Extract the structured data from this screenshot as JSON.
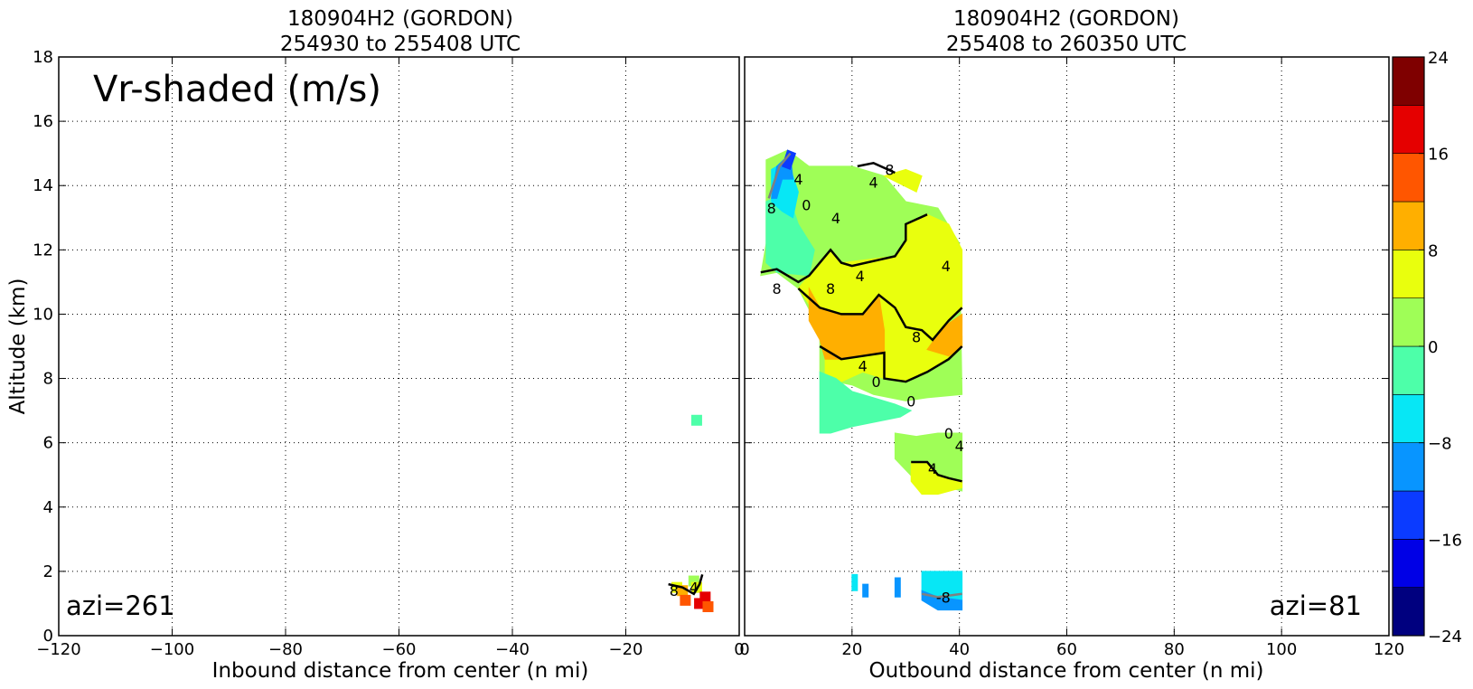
{
  "chart_data": [
    {
      "type": "heatmap",
      "title": [
        "180904H2 (GORDON)",
        "254930 to 255408 UTC"
      ],
      "xlabel": "Inbound distance from center (n mi)",
      "ylabel": "Altitude (km)",
      "annotation": "Vr-shaded (m/s)",
      "azi_label": "azi=261",
      "xlim": [
        -120,
        0
      ],
      "ylim": [
        0,
        18
      ],
      "x_ticks": [
        "−120",
        "−100",
        "−80",
        "−60",
        "−40",
        "−20",
        "0"
      ],
      "y_ticks": [
        "0",
        "2",
        "4",
        "6",
        "8",
        "10",
        "12",
        "14",
        "16",
        "18"
      ],
      "grid": true,
      "cells": [
        {
          "x": -7.5,
          "y": 6.7,
          "value": -2
        },
        {
          "x": -11,
          "y": 1.5,
          "value": 6
        },
        {
          "x": -10,
          "y": 1.4,
          "value": 10
        },
        {
          "x": -9.5,
          "y": 1.1,
          "value": 14
        },
        {
          "x": -8,
          "y": 1.7,
          "value": 2
        },
        {
          "x": -7.5,
          "y": 1.5,
          "value": 6
        },
        {
          "x": -7,
          "y": 1.0,
          "value": 18
        },
        {
          "x": -6,
          "y": 1.2,
          "value": 18
        },
        {
          "x": -5.5,
          "y": 0.9,
          "value": 14
        }
      ],
      "contour_labels": [
        {
          "text": "8",
          "x": -11.5,
          "y": 1.4
        },
        {
          "text": "4",
          "x": -8,
          "y": 1.5
        }
      ]
    },
    {
      "type": "heatmap",
      "title": [
        "180904H2 (GORDON)",
        "255408 to 260350 UTC"
      ],
      "xlabel": "Outbound distance from center (n mi)",
      "xlim": [
        0,
        120
      ],
      "ylim": [
        0,
        18
      ],
      "azi_label": "azi=81",
      "x_ticks": [
        "0",
        "20",
        "40",
        "60",
        "80",
        "100",
        "120"
      ],
      "grid": true,
      "regions": [
        {
          "value": 2,
          "points": [
            [
              4,
              13.8
            ],
            [
              4,
              14.8
            ],
            [
              8,
              15.1
            ],
            [
              12,
              14.6
            ],
            [
              20,
              14.6
            ],
            [
              26,
              14.3
            ],
            [
              30,
              13.5
            ],
            [
              36,
              13.3
            ],
            [
              40,
              12.2
            ],
            [
              40.5,
              7.5
            ],
            [
              34,
              7.4
            ],
            [
              30,
              7.3
            ],
            [
              24,
              7.5
            ],
            [
              20,
              7.8
            ],
            [
              14,
              8.0
            ],
            [
              14,
              9.5
            ],
            [
              10,
              10.8
            ],
            [
              6,
              11.3
            ],
            [
              3,
              11.2
            ],
            [
              4,
              12.2
            ]
          ]
        },
        {
          "value": -2,
          "points": [
            [
              4,
              12.0
            ],
            [
              4,
              13.5
            ],
            [
              8,
              13.8
            ],
            [
              10,
              12.8
            ],
            [
              13,
              12.0
            ],
            [
              12,
              11.2
            ],
            [
              6,
              11.3
            ],
            [
              4,
              11.6
            ]
          ]
        },
        {
          "value": -6,
          "points": [
            [
              5,
              13.5
            ],
            [
              5,
              14.5
            ],
            [
              8,
              14.8
            ],
            [
              10,
              13.8
            ],
            [
              9,
              13.0
            ],
            [
              7,
              13.2
            ]
          ]
        },
        {
          "value": -10,
          "points": [
            [
              5,
              13.6
            ],
            [
              6,
              14.6
            ],
            [
              8.5,
              15.0
            ],
            [
              9,
              14.2
            ],
            [
              7,
              14.2
            ],
            [
              6,
              13.6
            ]
          ]
        },
        {
          "value": -14,
          "points": [
            [
              7,
              14.6
            ],
            [
              8,
              15.1
            ],
            [
              9.5,
              15.0
            ],
            [
              8.5,
              14.5
            ]
          ]
        },
        {
          "value": 6,
          "points": [
            [
              14,
              9.8
            ],
            [
              22,
              10.0
            ],
            [
              25,
              10.6
            ],
            [
              28,
              10.2
            ],
            [
              30,
              9.6
            ],
            [
              33,
              9.5
            ],
            [
              35,
              9.2
            ],
            [
              38,
              9.8
            ],
            [
              40.5,
              10.2
            ],
            [
              40.5,
              12.0
            ],
            [
              38,
              12.8
            ],
            [
              34,
              13.1
            ],
            [
              30,
              12.8
            ],
            [
              30,
              12.3
            ],
            [
              28,
              11.8
            ],
            [
              18,
              11.6
            ],
            [
              16,
              12.0
            ],
            [
              14,
              11.6
            ],
            [
              12,
              11.2
            ],
            [
              10,
              10.8
            ]
          ]
        },
        {
          "value": 6,
          "points": [
            [
              26,
              14.3
            ],
            [
              30,
              14.5
            ],
            [
              33,
              14.3
            ],
            [
              32,
              13.8
            ]
          ]
        },
        {
          "value": 6,
          "points": [
            [
              15,
              9.0
            ],
            [
              15,
              8.0
            ],
            [
              18,
              7.9
            ],
            [
              22,
              8.2
            ],
            [
              26,
              8.0
            ],
            [
              30,
              7.9
            ],
            [
              34,
              8.2
            ],
            [
              38,
              8.6
            ],
            [
              40.5,
              9.0
            ],
            [
              40.5,
              9.3
            ],
            [
              38,
              9.0
            ],
            [
              35,
              9.2
            ],
            [
              33,
              9.5
            ],
            [
              30,
              9.6
            ],
            [
              28,
              10.2
            ],
            [
              25,
              10.6
            ],
            [
              22,
              10.0
            ],
            [
              18,
              9.8
            ]
          ]
        },
        {
          "value": 10,
          "points": [
            [
              12,
              10.8
            ],
            [
              14,
              10.2
            ],
            [
              18,
              10.0
            ],
            [
              22,
              10.0
            ],
            [
              25,
              10.6
            ],
            [
              26,
              9.5
            ],
            [
              26,
              8.8
            ],
            [
              22,
              8.7
            ],
            [
              18,
              8.6
            ],
            [
              15,
              8.6
            ],
            [
              14,
              9.2
            ],
            [
              12,
              9.8
            ]
          ]
        },
        {
          "value": 10,
          "points": [
            [
              34,
              8.9
            ],
            [
              37,
              9.6
            ],
            [
              40.5,
              10.0
            ],
            [
              40.5,
              9.0
            ],
            [
              38,
              8.7
            ]
          ]
        },
        {
          "value": -2,
          "points": [
            [
              14,
              6.3
            ],
            [
              14,
              8.2
            ],
            [
              17,
              8.0
            ],
            [
              20,
              7.6
            ],
            [
              24,
              7.4
            ],
            [
              28,
              7.2
            ],
            [
              31,
              7.0
            ],
            [
              29,
              6.8
            ],
            [
              20,
              6.5
            ],
            [
              16,
              6.3
            ]
          ]
        },
        {
          "value": 2,
          "points": [
            [
              28,
              6.3
            ],
            [
              28,
              5.5
            ],
            [
              32,
              4.8
            ],
            [
              35,
              4.4
            ],
            [
              38,
              4.6
            ],
            [
              40.5,
              4.5
            ],
            [
              40.5,
              6.3
            ],
            [
              36,
              6.3
            ],
            [
              32,
              6.2
            ]
          ]
        },
        {
          "value": 6,
          "points": [
            [
              31,
              5.4
            ],
            [
              34,
              5.4
            ],
            [
              36,
              5.0
            ],
            [
              38,
              4.9
            ],
            [
              40.5,
              4.8
            ],
            [
              40.5,
              4.6
            ],
            [
              36,
              4.4
            ],
            [
              33,
              4.4
            ],
            [
              31,
              4.8
            ]
          ]
        },
        {
          "value": -6,
          "points": [
            [
              20,
              1.9
            ],
            [
              21,
              1.9
            ],
            [
              21,
              1.4
            ],
            [
              20,
              1.4
            ]
          ]
        },
        {
          "value": -6,
          "points": [
            [
              33,
              2.0
            ],
            [
              40.5,
              2.0
            ],
            [
              40.5,
              1.1
            ],
            [
              36,
              0.9
            ],
            [
              33,
              1.3
            ]
          ]
        },
        {
          "value": -10,
          "points": [
            [
              33,
              1.4
            ],
            [
              36,
              1.2
            ],
            [
              40.5,
              1.1
            ],
            [
              40.5,
              0.8
            ],
            [
              36,
              0.8
            ],
            [
              33,
              1.1
            ]
          ]
        },
        {
          "value": -10,
          "points": [
            [
              22,
              1.6
            ],
            [
              23,
              1.6
            ],
            [
              23,
              1.2
            ],
            [
              22,
              1.2
            ]
          ]
        },
        {
          "value": -10,
          "points": [
            [
              28,
              1.8
            ],
            [
              29,
              1.8
            ],
            [
              29,
              1.2
            ],
            [
              28,
              1.2
            ]
          ]
        }
      ],
      "contour_labels": [
        {
          "text": "4",
          "x": 10,
          "y": 14.2
        },
        {
          "text": "8",
          "x": 27,
          "y": 14.5
        },
        {
          "text": "4",
          "x": 24,
          "y": 14.1
        },
        {
          "text": "0",
          "x": 11.5,
          "y": 13.4
        },
        {
          "text": "8",
          "x": 5,
          "y": 13.3
        },
        {
          "text": "4",
          "x": 17,
          "y": 13.0
        },
        {
          "text": "8",
          "x": 6,
          "y": 10.8
        },
        {
          "text": "8",
          "x": 16,
          "y": 10.8
        },
        {
          "text": "4",
          "x": 21.5,
          "y": 11.2
        },
        {
          "text": "4",
          "x": 37.5,
          "y": 11.5
        },
        {
          "text": "8",
          "x": 32,
          "y": 9.3
        },
        {
          "text": "4",
          "x": 22,
          "y": 8.4
        },
        {
          "text": "0",
          "x": 24.5,
          "y": 7.9
        },
        {
          "text": "0",
          "x": 31,
          "y": 7.3
        },
        {
          "text": "0",
          "x": 38,
          "y": 6.3
        },
        {
          "text": "4",
          "x": 40,
          "y": 5.9
        },
        {
          "text": "4",
          "x": 35,
          "y": 5.2
        },
        {
          "text": "-8",
          "x": 37,
          "y": 1.2
        }
      ]
    }
  ],
  "colorbar": {
    "ticks": [
      "24",
      "16",
      "8",
      "0",
      "−8",
      "−16",
      "−24"
    ],
    "levels": [
      -24,
      -20,
      -16,
      -12,
      -8,
      -4,
      0,
      4,
      8,
      12,
      16,
      20,
      24
    ],
    "colors": [
      "#00007f",
      "#0000e6",
      "#0b3bff",
      "#0895ff",
      "#07e7f5",
      "#4dffa9",
      "#9ffe57",
      "#e9ff0d",
      "#ffaf00",
      "#ff5600",
      "#e50000",
      "#7f0000"
    ]
  }
}
